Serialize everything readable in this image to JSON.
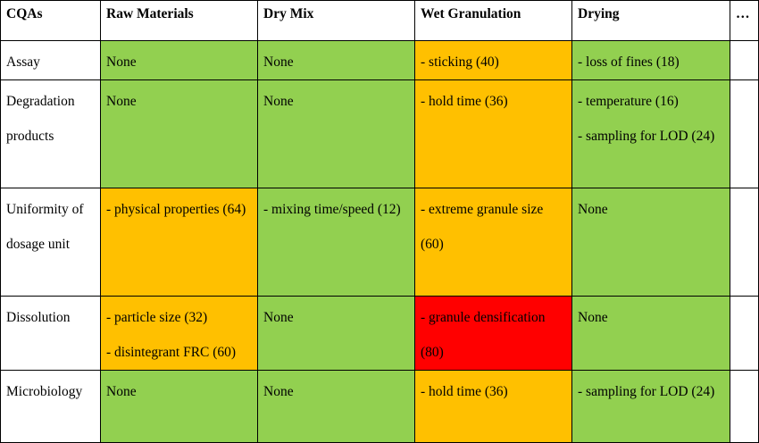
{
  "headers": [
    "CQAs",
    "Raw Materials",
    "Dry Mix",
    "Wet Granulation",
    "Drying",
    "…"
  ],
  "colors": {
    "green": "#92d050",
    "orange": "#ffc000",
    "red": "#ff0000",
    "white": "#ffffff"
  },
  "rows": [
    {
      "cqa": "Assay",
      "cells": [
        {
          "text": "None",
          "status": "green"
        },
        {
          "text": "None",
          "status": "green"
        },
        {
          "text": "- sticking (40)",
          "status": "orange"
        },
        {
          "text": "- loss of fines (18)",
          "status": "green"
        },
        {
          "text": "",
          "status": "white"
        }
      ]
    },
    {
      "cqa": "Degradation products",
      "cells": [
        {
          "text": "None",
          "status": "green"
        },
        {
          "text": "None",
          "status": "green"
        },
        {
          "text": "- hold time (36)",
          "status": "orange"
        },
        {
          "text": "- temperature (16)\n- sampling for LOD (24)",
          "status": "green"
        },
        {
          "text": "",
          "status": "white"
        }
      ]
    },
    {
      "cqa": "Uniformity of dosage unit",
      "cells": [
        {
          "text": "- physical properties (64)",
          "status": "orange"
        },
        {
          "text": "- mixing time/speed (12)",
          "status": "green"
        },
        {
          "text": "- extreme granule size (60)",
          "status": "orange"
        },
        {
          "text": "None",
          "status": "green"
        },
        {
          "text": "",
          "status": "white"
        }
      ]
    },
    {
      "cqa": "Dissolution",
      "cells": [
        {
          "text": "- particle size (32)\n- disintegrant FRC (60)",
          "status": "orange"
        },
        {
          "text": "None",
          "status": "green"
        },
        {
          "text": "- granule densification (80)",
          "status": "red"
        },
        {
          "text": "None",
          "status": "green"
        },
        {
          "text": "",
          "status": "white"
        }
      ]
    },
    {
      "cqa": "Microbiology",
      "cells": [
        {
          "text": "None",
          "status": "green"
        },
        {
          "text": "None",
          "status": "green"
        },
        {
          "text": "- hold time (36)",
          "status": "orange"
        },
        {
          "text": "- sampling for LOD (24)",
          "status": "green"
        },
        {
          "text": "",
          "status": "white"
        }
      ]
    }
  ]
}
